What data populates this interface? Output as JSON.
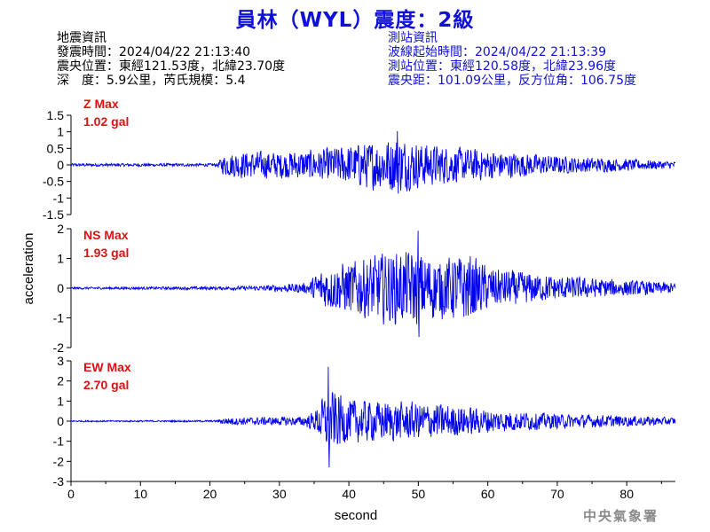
{
  "header": {
    "title": "員林（WYL）震度：2級"
  },
  "quake_info": {
    "heading": "地震資訊",
    "time": "發震時間：2024/04/22 21:13:40",
    "epicenter": "震央位置：東經121.53度，北緯23.70度",
    "depth_mag": "深　度：5.9公里，芮氏規模：5.4"
  },
  "station_info": {
    "heading": "測站資訊",
    "wave_start": "波線起始時間：2024/04/22 21:13:39",
    "position": "測站位置：東經120.58度，北緯23.96度",
    "distance": "震央距：101.09公里，反方位角：106.75度"
  },
  "footer": {
    "agency": "中央氣象署"
  },
  "colors": {
    "trace": "#0000ee",
    "label": "#e01010",
    "title": "#1010d8"
  },
  "chart_data": {
    "type": "line",
    "xlabel": "second",
    "ylabel": "acceleration",
    "xlim": [
      0,
      87
    ],
    "xticks": [
      "0",
      "10",
      "20",
      "30",
      "40",
      "50",
      "60",
      "70",
      "80"
    ],
    "panels": [
      {
        "name": "Z Max",
        "max_label": "1.02 gal",
        "max": 1.02,
        "ylim": [
          -1.5,
          1.5
        ],
        "yticks": [
          "1.5",
          "1",
          "0.5",
          "0",
          "-0.5",
          "-1",
          "-1.5"
        ],
        "envelope": [
          [
            0,
            0.05
          ],
          [
            21,
            0.05
          ],
          [
            22,
            0.35
          ],
          [
            24,
            0.45
          ],
          [
            30,
            0.45
          ],
          [
            35,
            0.5
          ],
          [
            38,
            0.6
          ],
          [
            42,
            0.75
          ],
          [
            47,
            0.95
          ],
          [
            50,
            0.75
          ],
          [
            55,
            0.6
          ],
          [
            60,
            0.5
          ],
          [
            65,
            0.4
          ],
          [
            70,
            0.3
          ],
          [
            80,
            0.2
          ],
          [
            87,
            0.12
          ]
        ]
      },
      {
        "name": "NS Max",
        "max_label": "1.93 gal",
        "max": 1.93,
        "ylim": [
          -2,
          2
        ],
        "yticks": [
          "2",
          "1",
          "0",
          "-1",
          "-2"
        ],
        "envelope": [
          [
            0,
            0.04
          ],
          [
            22,
            0.06
          ],
          [
            28,
            0.1
          ],
          [
            34,
            0.2
          ],
          [
            36,
            0.7
          ],
          [
            40,
            1.0
          ],
          [
            45,
            1.3
          ],
          [
            50,
            1.4
          ],
          [
            53,
            1.1
          ],
          [
            57,
            1.3
          ],
          [
            60,
            0.8
          ],
          [
            65,
            0.6
          ],
          [
            70,
            0.45
          ],
          [
            80,
            0.3
          ],
          [
            87,
            0.2
          ]
        ]
      },
      {
        "name": "EW Max",
        "max_label": "2.70 gal",
        "max": 2.7,
        "ylim": [
          -3,
          3
        ],
        "yticks": [
          "3",
          "2",
          "1",
          "0",
          "-1",
          "-2",
          "-3"
        ],
        "envelope": [
          [
            0,
            0.04
          ],
          [
            21,
            0.05
          ],
          [
            22,
            0.2
          ],
          [
            33,
            0.25
          ],
          [
            35,
            0.5
          ],
          [
            37,
            1.8
          ],
          [
            40,
            1.2
          ],
          [
            45,
            1.1
          ],
          [
            52,
            1.0
          ],
          [
            57,
            0.8
          ],
          [
            62,
            0.6
          ],
          [
            70,
            0.4
          ],
          [
            80,
            0.3
          ],
          [
            87,
            0.2
          ]
        ]
      }
    ]
  }
}
